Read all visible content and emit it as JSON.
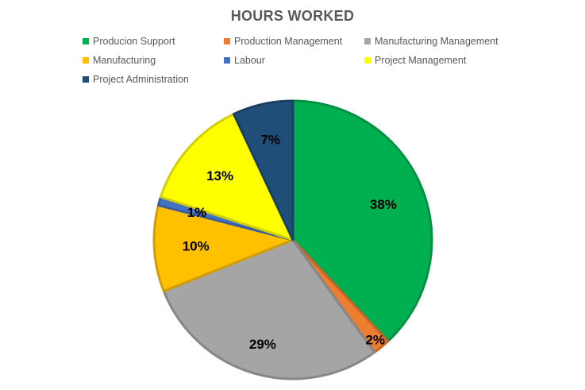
{
  "chart_data": {
    "type": "pie",
    "title": "HOURS WORKED",
    "categories": [
      "Producion Support",
      "Production Management",
      "Manufacturing Management",
      "Manufacturing",
      "Labour",
      "Project Management",
      "Project Administration"
    ],
    "values": [
      38,
      2,
      29,
      10,
      1,
      13,
      7
    ],
    "labels": [
      "38%",
      "2%",
      "29%",
      "10%",
      "1%",
      "13%",
      "7%"
    ],
    "colors": [
      "#00B050",
      "#ED7D31",
      "#A5A5A5",
      "#FFC000",
      "#4472C4",
      "#FFFF00",
      "#1F4E79"
    ],
    "legend_position": "top"
  }
}
